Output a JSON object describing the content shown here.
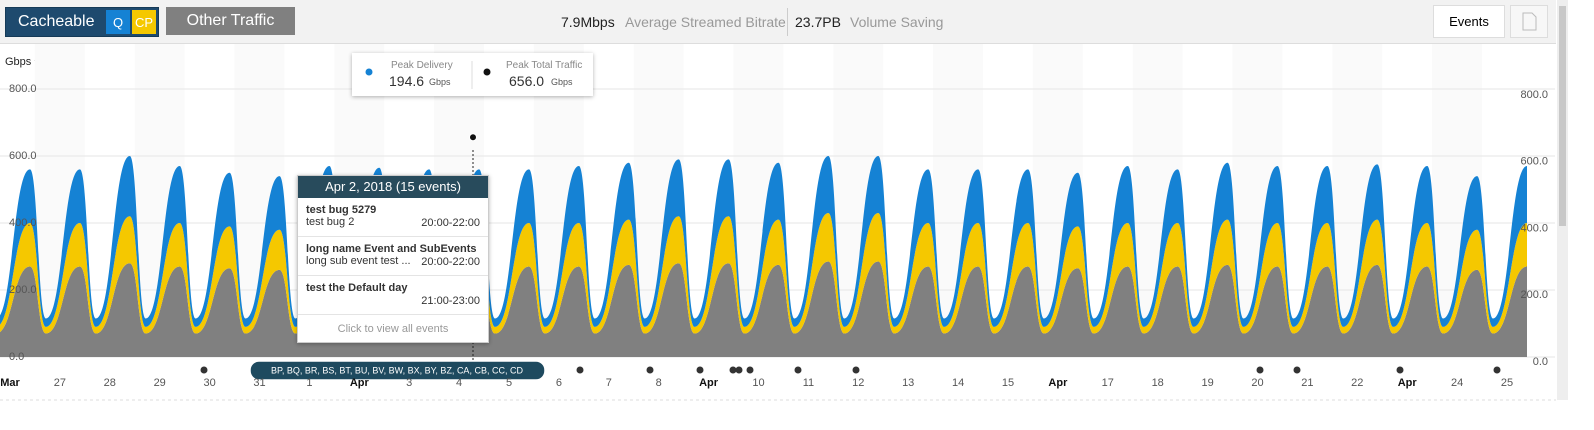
{
  "toolbar": {
    "cacheable": "Cacheable",
    "q": "Q",
    "cp": "CP",
    "other": "Other Traffic",
    "bitrate": "7.9Mbps",
    "bitrate_label": "Average Streamed Bitrate",
    "saving": "23.7PB",
    "saving_label": "Volume Saving",
    "events": "Events"
  },
  "tooltip": {
    "delivery_label": "Peak Delivery",
    "delivery_value": 194.6,
    "delivery_unit": "Gbps",
    "total_label": "Peak Total Traffic",
    "total_value": {
      "value": 656,
      "label": "656.0"
    },
    "total_unit": "Gbps"
  },
  "popup": {
    "title": "Apr 2, 2018 (15 events)",
    "events": [
      {
        "name": "test bug 5279",
        "sub": "test bug 2",
        "time": "20:00-22:00"
      },
      {
        "name": "long name Event and SubEvents",
        "sub": "long sub event test ...",
        "time": "20:00-22:00"
      },
      {
        "name": "test the Default day",
        "time": "21:00-23:00"
      }
    ],
    "footer": "Click to view all events"
  },
  "event_bar": "BP, BQ, BR, BS, BT, BU, BV, BW, BX, BY, BZ, CA, CB, CC, CD",
  "chart_data": {
    "type": "area",
    "unit": "Gbps",
    "categories": [
      "Mar",
      "27",
      "28",
      "29",
      "30",
      "31",
      "1",
      "Apr",
      "3",
      "4",
      "5",
      "6",
      "7",
      "8",
      "Apr",
      "10",
      "11",
      "12",
      "13",
      "14",
      "15",
      "Apr",
      "17",
      "18",
      "19",
      "20",
      "21",
      "22",
      "Apr",
      "24",
      "25"
    ],
    "ylim": [
      0,
      800
    ],
    "yticks": [
      {
        "value": 0,
        "label": "0.0"
      },
      {
        "value": 200,
        "label": "200.0"
      },
      {
        "value": 400,
        "label": "400.0"
      },
      {
        "value": 600,
        "label": "600.0"
      },
      {
        "value": 800,
        "label": "800.0"
      }
    ],
    "y2lim": [
      0,
      800
    ],
    "y2ticks": [
      {
        "value": 0,
        "label": "0.0"
      },
      {
        "value": 200,
        "label": "200.0"
      },
      {
        "value": 400,
        "label": "400.0"
      },
      {
        "value": 600,
        "label": "600.0"
      },
      {
        "value": 800,
        "label": "800.0"
      }
    ],
    "series": [
      {
        "color": "#808080",
        "troughs": [
          70,
          70,
          70,
          70,
          70,
          70,
          70,
          70,
          70,
          70,
          70,
          70,
          70,
          70,
          70,
          70,
          70,
          70,
          70,
          70,
          70,
          70,
          70,
          70,
          70,
          70,
          70,
          70,
          70,
          70,
          70
        ],
        "peaks": [
          270,
          270,
          280,
          270,
          265,
          260,
          270,
          270,
          265,
          265,
          270,
          270,
          275,
          280,
          280,
          275,
          285,
          285,
          270,
          270,
          270,
          265,
          270,
          270,
          275,
          270,
          270,
          275,
          270,
          260,
          270
        ]
      },
      {
        "color": "#f5c800",
        "troughs": [
          20,
          20,
          20,
          20,
          20,
          20,
          20,
          20,
          20,
          20,
          20,
          20,
          20,
          20,
          20,
          20,
          20,
          20,
          20,
          20,
          20,
          20,
          20,
          20,
          20,
          20,
          20,
          20,
          20,
          20,
          20
        ],
        "peaks": [
          130,
          130,
          140,
          130,
          125,
          120,
          130,
          130,
          130,
          130,
          130,
          130,
          135,
          140,
          140,
          135,
          145,
          145,
          130,
          130,
          130,
          125,
          130,
          130,
          135,
          130,
          130,
          135,
          130,
          120,
          130
        ]
      },
      {
        "color": "#1582d4",
        "troughs": [
          25,
          25,
          25,
          25,
          25,
          25,
          25,
          25,
          25,
          25,
          25,
          25,
          25,
          25,
          25,
          25,
          25,
          25,
          25,
          25,
          25,
          25,
          25,
          25,
          25,
          25,
          25,
          25,
          25,
          25,
          25
        ],
        "peaks": [
          160,
          160,
          180,
          170,
          160,
          160,
          170,
          165,
          165,
          165,
          160,
          170,
          170,
          170,
          170,
          170,
          170,
          170,
          160,
          160,
          160,
          160,
          170,
          160,
          170,
          170,
          170,
          165,
          170,
          160,
          170
        ]
      }
    ]
  }
}
